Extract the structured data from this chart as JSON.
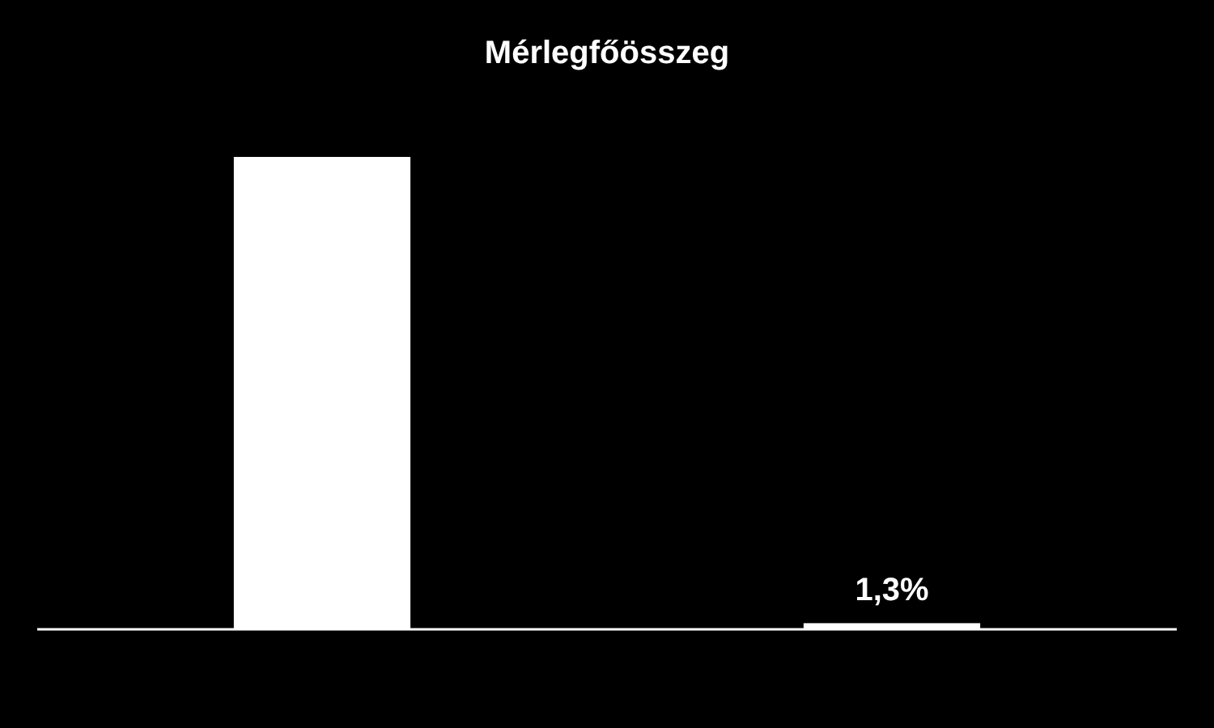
{
  "chart_data": {
    "type": "bar",
    "title": "Mérlegfőösszeg",
    "categories": [
      null,
      null
    ],
    "values": [
      100,
      1.3
    ],
    "color": "#ffffff",
    "ylim": [
      0,
      100
    ],
    "value_labels": [
      null,
      "1,3%"
    ]
  }
}
